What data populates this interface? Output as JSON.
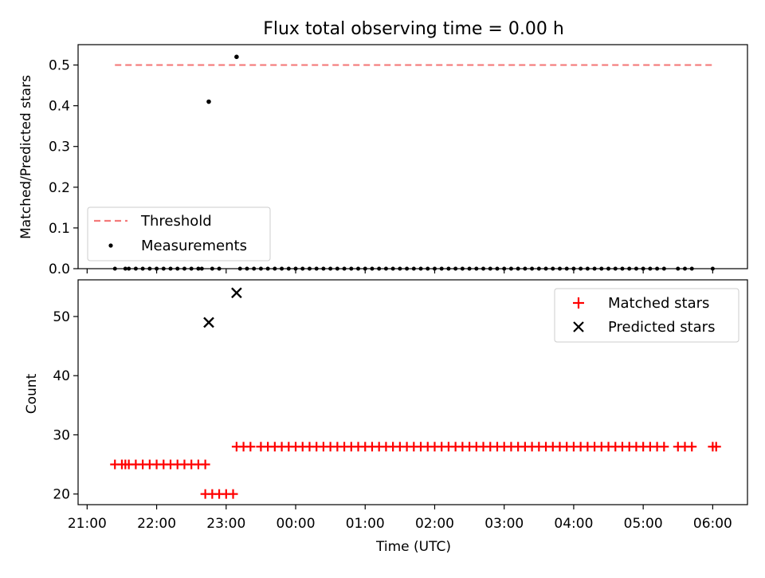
{
  "chart_data": [
    {
      "type": "scatter",
      "title": "Flux total observing time = 0.00 h",
      "ylabel": "Matched/Predicted stars",
      "xlabel": "",
      "x_unit": "hours since 21:00 UTC",
      "ylim": [
        0,
        0.55
      ],
      "yticks": [
        0.0,
        0.1,
        0.2,
        0.3,
        0.4,
        0.5
      ],
      "ytick_labels": [
        "0.0",
        "0.1",
        "0.2",
        "0.3",
        "0.4",
        "0.5"
      ],
      "threshold": {
        "name": "Threshold",
        "value": 0.5,
        "x_range": [
          0.4,
          9.0
        ],
        "color": "#f47a7a"
      },
      "measurements": {
        "name": "Measurements",
        "color": "#000000",
        "nonzero": [
          {
            "x": 1.75,
            "y": 0.41
          },
          {
            "x": 2.15,
            "y": 0.52
          }
        ],
        "zero_x": [
          0.4,
          0.55,
          0.6,
          0.7,
          0.8,
          0.9,
          1.0,
          1.1,
          1.2,
          1.3,
          1.4,
          1.5,
          1.6,
          1.65,
          1.8,
          1.9,
          2.2,
          2.3,
          2.4,
          2.5,
          2.6,
          2.7,
          2.8,
          2.9,
          3.0,
          3.1,
          3.2,
          3.3,
          3.4,
          3.5,
          3.6,
          3.7,
          3.8,
          3.9,
          4.0,
          4.1,
          4.2,
          4.3,
          4.4,
          4.5,
          4.6,
          4.7,
          4.8,
          4.9,
          5.0,
          5.1,
          5.2,
          5.3,
          5.4,
          5.5,
          5.6,
          5.7,
          5.8,
          5.9,
          6.0,
          6.1,
          6.2,
          6.3,
          6.4,
          6.5,
          6.6,
          6.7,
          6.8,
          6.9,
          7.0,
          7.1,
          7.2,
          7.3,
          7.4,
          7.5,
          7.6,
          7.7,
          7.8,
          7.9,
          8.0,
          8.1,
          8.2,
          8.3,
          8.5,
          8.6,
          8.7,
          9.0
        ]
      },
      "legend": {
        "position": "lower-left",
        "entries": [
          "Threshold",
          "Measurements"
        ]
      }
    },
    {
      "type": "scatter",
      "title": "",
      "ylabel": "Count",
      "xlabel": "Time (UTC)",
      "x_unit": "hours since 21:00 UTC",
      "xlim": [
        -0.13,
        9.5
      ],
      "ylim": [
        18.2,
        56.2
      ],
      "yticks": [
        20,
        30,
        40,
        50
      ],
      "ytick_labels": [
        "20",
        "30",
        "40",
        "50"
      ],
      "xticks": [
        0,
        1,
        2,
        3,
        4,
        5,
        6,
        7,
        8,
        9
      ],
      "xtick_labels": [
        "21:00",
        "22:00",
        "23:00",
        "00:00",
        "01:00",
        "02:00",
        "03:00",
        "04:00",
        "05:00",
        "06:00"
      ],
      "series": [
        {
          "name": "Matched stars",
          "marker": "+",
          "color": "#ff0000",
          "groups": [
            {
              "y": 25,
              "x": [
                0.4,
                0.5,
                0.55,
                0.6,
                0.7,
                0.8,
                0.9,
                1.0,
                1.1,
                1.2,
                1.3,
                1.4,
                1.5,
                1.6,
                1.7
              ]
            },
            {
              "y": 20,
              "x": [
                1.7,
                1.8,
                1.9,
                2.0,
                2.1
              ]
            },
            {
              "y": 28,
              "x": [
                2.15,
                2.25,
                2.35,
                2.5,
                2.6,
                2.7,
                2.8,
                2.9,
                3.0,
                3.1,
                3.2,
                3.3,
                3.4,
                3.5,
                3.6,
                3.7,
                3.8,
                3.9,
                4.0,
                4.1,
                4.2,
                4.3,
                4.4,
                4.5,
                4.6,
                4.7,
                4.8,
                4.9,
                5.0,
                5.1,
                5.2,
                5.3,
                5.4,
                5.5,
                5.6,
                5.7,
                5.8,
                5.9,
                6.0,
                6.1,
                6.2,
                6.3,
                6.4,
                6.5,
                6.6,
                6.7,
                6.8,
                6.9,
                7.0,
                7.1,
                7.2,
                7.3,
                7.4,
                7.5,
                7.6,
                7.7,
                7.8,
                7.9,
                8.0,
                8.1,
                8.2,
                8.3,
                8.5,
                8.6,
                8.7,
                9.0,
                9.05
              ]
            }
          ]
        },
        {
          "name": "Predicted stars",
          "marker": "x",
          "color": "#000000",
          "points": [
            {
              "x": 1.75,
              "y": 49
            },
            {
              "x": 2.15,
              "y": 54
            }
          ]
        }
      ],
      "legend": {
        "position": "top-right",
        "entries": [
          "Matched stars",
          "Predicted stars"
        ]
      }
    }
  ]
}
